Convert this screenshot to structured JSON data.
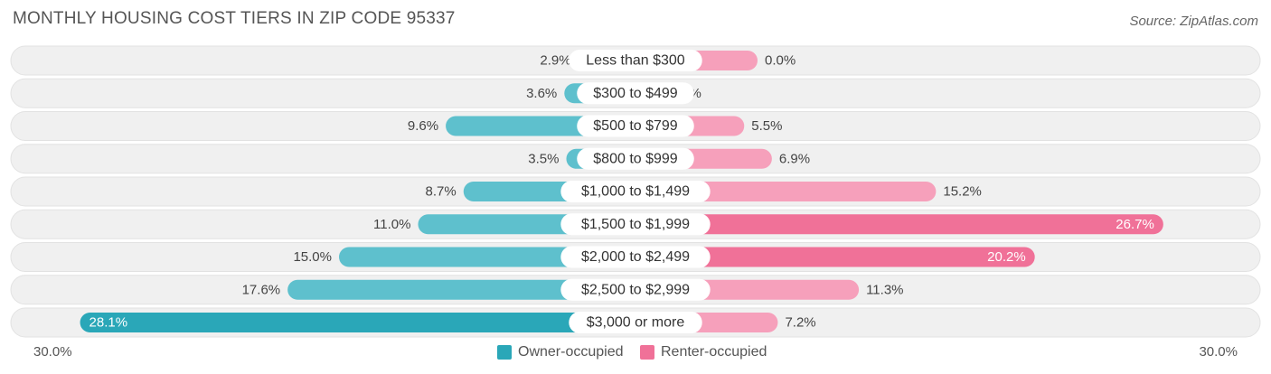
{
  "title": "MONTHLY HOUSING COST TIERS IN ZIP CODE 95337",
  "source": "Source: ZipAtlas.com",
  "axis": {
    "left_label": "30.0%",
    "right_label": "30.0%"
  },
  "legend": {
    "owner_label": "Owner-occupied",
    "renter_label": "Renter-occupied"
  },
  "colors": {
    "owner": "#5ec0cd",
    "owner_dark": "#2aa7b8",
    "renter": "#f6a0bb",
    "renter_dark": "#f07198",
    "row_bg": "#f0f0f0"
  },
  "chart_data": {
    "type": "bar",
    "orientation": "diverging-horizontal",
    "max": 30.0,
    "categories": [
      "Less than $300",
      "$300 to $499",
      "$500 to $799",
      "$800 to $999",
      "$1,000 to $1,499",
      "$1,500 to $1,999",
      "$2,000 to $2,499",
      "$2,500 to $2,999",
      "$3,000 or more"
    ],
    "series": [
      {
        "name": "Owner-occupied",
        "values": [
          2.9,
          3.6,
          9.6,
          3.5,
          8.7,
          11.0,
          15.0,
          17.6,
          28.1
        ],
        "labels": [
          "2.9%",
          "3.6%",
          "9.6%",
          "3.5%",
          "8.7%",
          "11.0%",
          "15.0%",
          "17.6%",
          "28.1%"
        ]
      },
      {
        "name": "Renter-occupied",
        "values": [
          0.0,
          1.4,
          5.5,
          6.9,
          15.2,
          26.7,
          20.2,
          11.3,
          7.2
        ],
        "labels": [
          "0.0%",
          "1.4%",
          "5.5%",
          "6.9%",
          "15.2%",
          "26.7%",
          "20.2%",
          "11.3%",
          "7.2%"
        ]
      }
    ]
  }
}
